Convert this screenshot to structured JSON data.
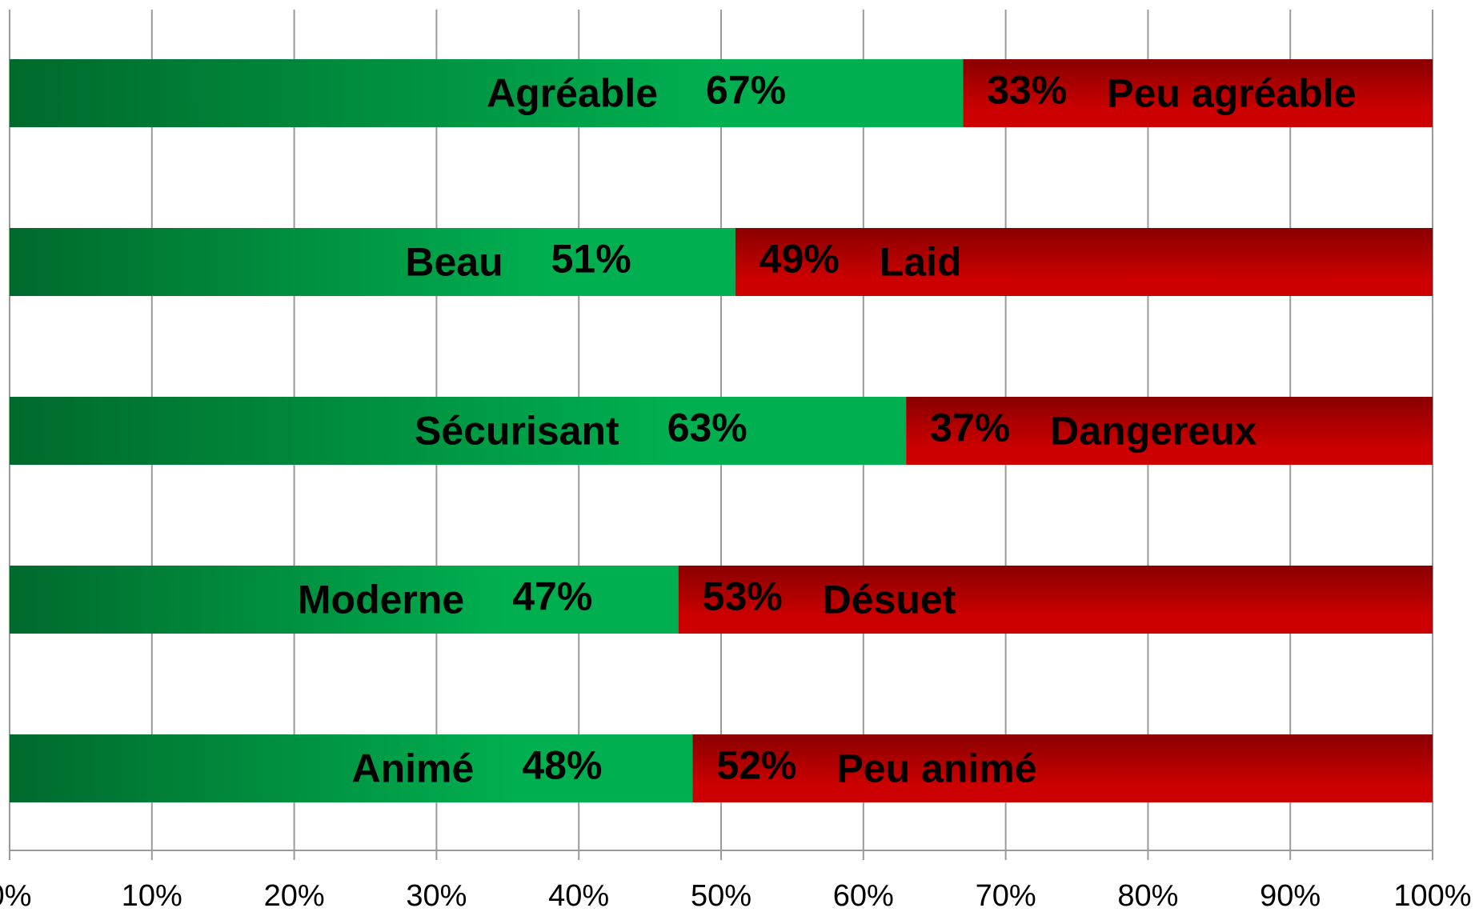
{
  "chart_data": {
    "type": "stacked_bar_horizontal",
    "categories": [
      "Agréable",
      "Beau",
      "Sécurisant",
      "Moderne",
      "Animé"
    ],
    "series": [
      {
        "labels": [
          "Agréable",
          "Beau",
          "Sécurisant",
          "Moderne",
          "Animé"
        ],
        "color": "#00b050",
        "values": [
          67,
          51,
          63,
          47,
          48
        ],
        "value_labels": [
          "67%",
          "51%",
          "63%",
          "47%",
          "48%"
        ]
      },
      {
        "labels": [
          "Peu agréable",
          "Laid",
          "Dangereux",
          "Désuet",
          "Peu animé"
        ],
        "color": "#cc0000",
        "values": [
          33,
          49,
          37,
          53,
          52
        ],
        "value_labels": [
          "33%",
          "49%",
          "37%",
          "53%",
          "52%"
        ]
      }
    ],
    "xlim": [
      0,
      100
    ],
    "xticks": [
      {
        "value": 0,
        "label": "0%"
      },
      {
        "value": 10,
        "label": "10%"
      },
      {
        "value": 20,
        "label": "20%"
      },
      {
        "value": 30,
        "label": "30%"
      },
      {
        "value": 40,
        "label": "40%"
      },
      {
        "value": 50,
        "label": "50%"
      },
      {
        "value": 60,
        "label": "60%"
      },
      {
        "value": 70,
        "label": "70%"
      },
      {
        "value": 80,
        "label": "80%"
      },
      {
        "value": 90,
        "label": "90%"
      },
      {
        "value": 100,
        "label": "100%"
      }
    ],
    "grid": true
  }
}
